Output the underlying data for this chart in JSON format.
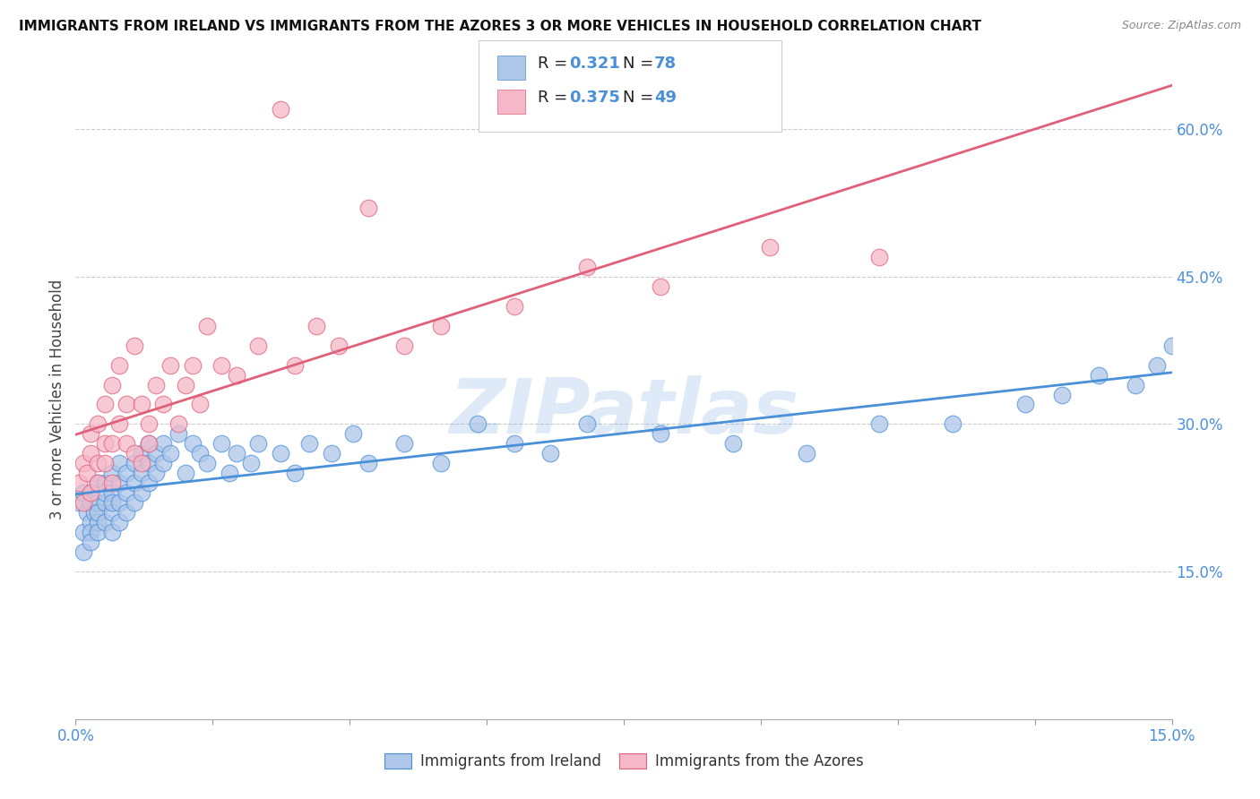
{
  "title": "IMMIGRANTS FROM IRELAND VS IMMIGRANTS FROM THE AZORES 3 OR MORE VEHICLES IN HOUSEHOLD CORRELATION CHART",
  "source": "Source: ZipAtlas.com",
  "ylabel_label": "3 or more Vehicles in Household",
  "ytick_values": [
    0.15,
    0.3,
    0.45,
    0.6
  ],
  "xlim": [
    0.0,
    0.15
  ],
  "ylim": [
    0.0,
    0.65
  ],
  "legend_label1": "Immigrants from Ireland",
  "legend_label2": "Immigrants from the Azores",
  "r1": "0.321",
  "n1": "78",
  "r2": "0.375",
  "n2": "49",
  "color_blue": "#aec6e8",
  "color_pink": "#f5b8c8",
  "line_color_blue": "#4a90d9",
  "line_color_pink": "#e0607a",
  "watermark": "ZIPatlas",
  "ireland_x": [
    0.0005,
    0.001,
    0.001,
    0.001,
    0.0015,
    0.002,
    0.002,
    0.002,
    0.002,
    0.0025,
    0.003,
    0.003,
    0.003,
    0.003,
    0.003,
    0.004,
    0.004,
    0.004,
    0.004,
    0.005,
    0.005,
    0.005,
    0.005,
    0.005,
    0.006,
    0.006,
    0.006,
    0.006,
    0.007,
    0.007,
    0.007,
    0.008,
    0.008,
    0.008,
    0.009,
    0.009,
    0.009,
    0.01,
    0.01,
    0.01,
    0.011,
    0.011,
    0.012,
    0.012,
    0.013,
    0.014,
    0.015,
    0.016,
    0.017,
    0.018,
    0.02,
    0.021,
    0.022,
    0.024,
    0.025,
    0.028,
    0.03,
    0.032,
    0.035,
    0.038,
    0.04,
    0.045,
    0.05,
    0.055,
    0.06,
    0.065,
    0.07,
    0.08,
    0.09,
    0.1,
    0.11,
    0.12,
    0.13,
    0.135,
    0.14,
    0.145,
    0.148,
    0.15
  ],
  "ireland_y": [
    0.22,
    0.23,
    0.19,
    0.17,
    0.21,
    0.2,
    0.19,
    0.22,
    0.18,
    0.21,
    0.22,
    0.2,
    0.24,
    0.19,
    0.21,
    0.22,
    0.24,
    0.2,
    0.23,
    0.23,
    0.21,
    0.25,
    0.19,
    0.22,
    0.24,
    0.22,
    0.26,
    0.2,
    0.25,
    0.23,
    0.21,
    0.26,
    0.24,
    0.22,
    0.25,
    0.27,
    0.23,
    0.26,
    0.24,
    0.28,
    0.27,
    0.25,
    0.28,
    0.26,
    0.27,
    0.29,
    0.25,
    0.28,
    0.27,
    0.26,
    0.28,
    0.25,
    0.27,
    0.26,
    0.28,
    0.27,
    0.25,
    0.28,
    0.27,
    0.29,
    0.26,
    0.28,
    0.26,
    0.3,
    0.28,
    0.27,
    0.3,
    0.29,
    0.28,
    0.27,
    0.3,
    0.3,
    0.32,
    0.33,
    0.35,
    0.34,
    0.36,
    0.38
  ],
  "azores_x": [
    0.0005,
    0.001,
    0.001,
    0.0015,
    0.002,
    0.002,
    0.002,
    0.003,
    0.003,
    0.003,
    0.004,
    0.004,
    0.004,
    0.005,
    0.005,
    0.005,
    0.006,
    0.006,
    0.007,
    0.007,
    0.008,
    0.008,
    0.009,
    0.009,
    0.01,
    0.01,
    0.011,
    0.012,
    0.013,
    0.014,
    0.015,
    0.016,
    0.017,
    0.018,
    0.02,
    0.022,
    0.025,
    0.028,
    0.03,
    0.033,
    0.036,
    0.04,
    0.045,
    0.05,
    0.06,
    0.07,
    0.08,
    0.095,
    0.11
  ],
  "azores_y": [
    0.24,
    0.26,
    0.22,
    0.25,
    0.27,
    0.23,
    0.29,
    0.26,
    0.3,
    0.24,
    0.28,
    0.32,
    0.26,
    0.28,
    0.34,
    0.24,
    0.3,
    0.36,
    0.28,
    0.32,
    0.27,
    0.38,
    0.26,
    0.32,
    0.3,
    0.28,
    0.34,
    0.32,
    0.36,
    0.3,
    0.34,
    0.36,
    0.32,
    0.4,
    0.36,
    0.35,
    0.38,
    0.62,
    0.36,
    0.4,
    0.38,
    0.52,
    0.38,
    0.4,
    0.42,
    0.46,
    0.44,
    0.48,
    0.47
  ]
}
